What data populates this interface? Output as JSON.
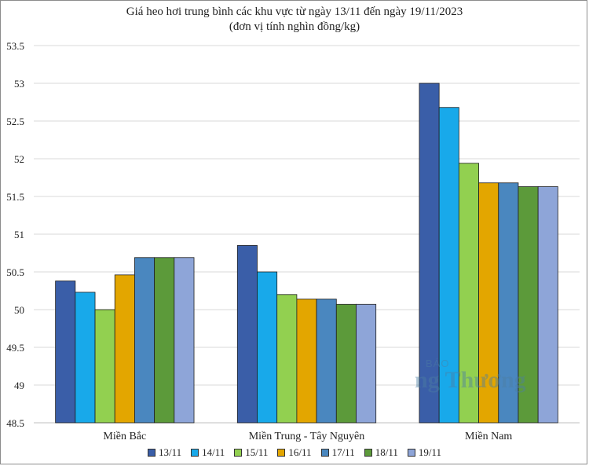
{
  "chart_data": {
    "type": "bar",
    "title": "Giá heo hơi trung bình các khu vực từ ngày 13/11 đến ngày 19/11/2023",
    "subtitle": "(đơn vị tính nghìn đồng/kg)",
    "categories": [
      "Miền Bắc",
      "Miền Trung - Tây Nguyên",
      "Miền Nam"
    ],
    "series": [
      {
        "name": "13/11",
        "color": "#3a5ea8",
        "values": [
          50.38,
          50.85,
          53.0
        ]
      },
      {
        "name": "14/11",
        "color": "#18a9ea",
        "values": [
          50.23,
          50.5,
          52.68
        ]
      },
      {
        "name": "15/11",
        "color": "#92d050",
        "values": [
          50.0,
          50.2,
          51.94
        ]
      },
      {
        "name": "16/11",
        "color": "#e3a600",
        "values": [
          50.46,
          50.14,
          51.68
        ]
      },
      {
        "name": "17/11",
        "color": "#4a87bf",
        "values": [
          50.69,
          50.14,
          51.68
        ]
      },
      {
        "name": "18/11",
        "color": "#5c9a3a",
        "values": [
          50.69,
          50.07,
          51.63
        ]
      },
      {
        "name": "19/11",
        "color": "#8ea5d8",
        "values": [
          50.69,
          50.07,
          51.63
        ]
      }
    ],
    "yticks": [
      "48.5",
      "49",
      "49.5",
      "50",
      "50.5",
      "51",
      "51.5",
      "52",
      "52.5",
      "53",
      "53.5"
    ],
    "ylim": [
      48.5,
      53.5
    ],
    "grid": true,
    "legend": "bottom",
    "xlabel": "",
    "ylabel": ""
  },
  "watermark": {
    "top": "BÁO",
    "main": "ng Thương"
  }
}
